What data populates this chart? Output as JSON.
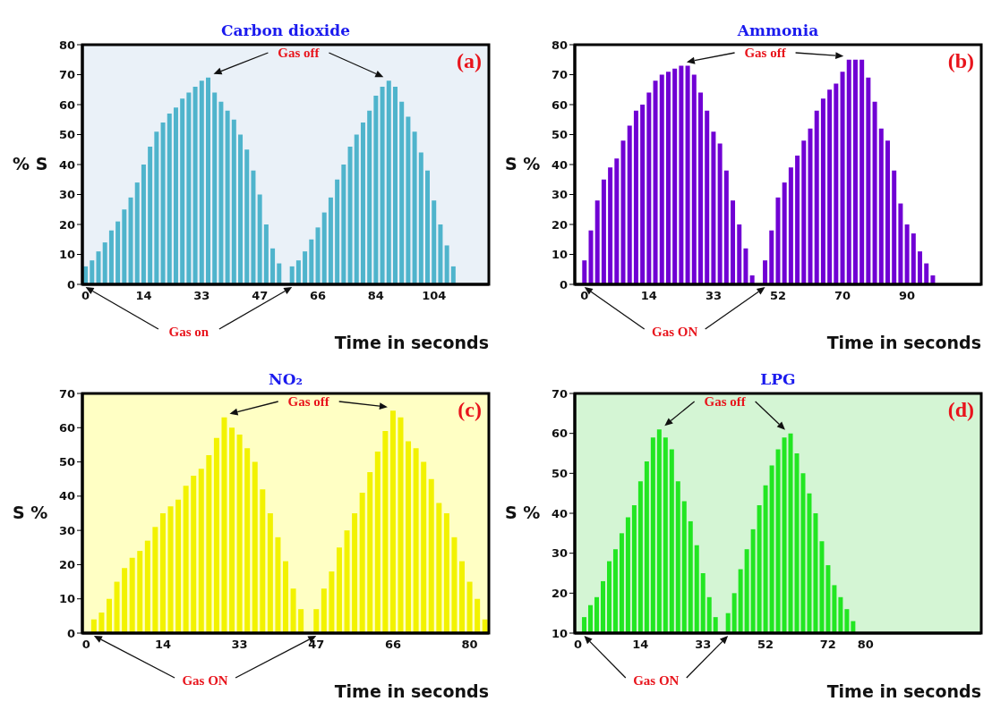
{
  "chart_data": [
    {
      "type": "bar",
      "title": "Carbon dioxide",
      "xlabel": "Time in seconds",
      "ylabel": "% S",
      "color": "#4fb4cc",
      "ylim": [
        0,
        80
      ],
      "yticks": [
        0,
        10,
        20,
        30,
        40,
        50,
        60,
        70,
        80
      ],
      "annotations": [
        "Gas off",
        "Gas on",
        "(a)"
      ],
      "categories": [
        "0",
        null,
        null,
        null,
        null,
        null,
        null,
        null,
        null,
        "14",
        null,
        null,
        null,
        null,
        null,
        null,
        null,
        null,
        "33",
        null,
        null,
        null,
        null,
        null,
        null,
        null,
        null,
        "47",
        null,
        null,
        null,
        null,
        null,
        null,
        null,
        null,
        "66",
        null,
        null,
        null,
        null,
        null,
        null,
        null,
        null,
        "84",
        null,
        null,
        null,
        null,
        null,
        null,
        null,
        null,
        "104",
        null,
        null,
        null,
        null,
        null,
        null,
        null,
        null
      ],
      "values": [
        6,
        8,
        11,
        14,
        18,
        21,
        25,
        29,
        34,
        40,
        46,
        51,
        54,
        57,
        59,
        62,
        64,
        66,
        68,
        69,
        64,
        61,
        58,
        55,
        50,
        45,
        38,
        30,
        20,
        12,
        7,
        null,
        6,
        8,
        11,
        15,
        19,
        24,
        29,
        35,
        40,
        46,
        50,
        54,
        58,
        63,
        66,
        68,
        66,
        61,
        56,
        51,
        44,
        38,
        28,
        20,
        13,
        6,
        null,
        null,
        null,
        null,
        null
      ]
    },
    {
      "type": "bar",
      "title": "Ammonia",
      "xlabel": "Time in seconds",
      "ylabel": "S %",
      "color": "#7000d4",
      "ylim": [
        0,
        80
      ],
      "yticks": [
        0,
        10,
        20,
        30,
        40,
        50,
        60,
        70,
        80
      ],
      "annotations": [
        "Gas off",
        "Gas ON",
        "(b)"
      ],
      "categories": [
        null,
        "0",
        null,
        null,
        null,
        null,
        null,
        null,
        null,
        null,
        null,
        "14",
        null,
        null,
        null,
        null,
        null,
        null,
        null,
        null,
        null,
        "33",
        null,
        null,
        null,
        null,
        null,
        null,
        null,
        null,
        null,
        "52",
        null,
        null,
        null,
        null,
        null,
        null,
        null,
        null,
        null,
        "70",
        null,
        null,
        null,
        null,
        null,
        null,
        null,
        null,
        null,
        "90",
        null,
        null,
        null,
        null,
        null,
        null,
        null,
        null,
        null,
        null,
        null
      ],
      "values": [
        null,
        8,
        18,
        28,
        35,
        39,
        42,
        48,
        53,
        58,
        60,
        64,
        68,
        70,
        71,
        72,
        73,
        73,
        70,
        64,
        58,
        51,
        47,
        38,
        28,
        20,
        12,
        3,
        null,
        8,
        18,
        29,
        34,
        39,
        43,
        48,
        52,
        58,
        62,
        65,
        67,
        71,
        75,
        75,
        75,
        69,
        61,
        52,
        48,
        38,
        27,
        20,
        17,
        11,
        7,
        3,
        null,
        null,
        null,
        null,
        null,
        null,
        null
      ]
    },
    {
      "type": "bar",
      "title": "NO₂",
      "xlabel": "Time in seconds",
      "ylabel": "S %",
      "color": "#f2f200",
      "ylim": [
        0,
        70
      ],
      "yticks": [
        0,
        10,
        20,
        30,
        40,
        50,
        60,
        70
      ],
      "annotations": [
        "Gas off",
        "Gas ON",
        "(c)"
      ],
      "categories": [
        "0",
        null,
        null,
        null,
        null,
        null,
        null,
        null,
        null,
        null,
        "14",
        null,
        null,
        null,
        null,
        null,
        null,
        null,
        null,
        null,
        "33",
        null,
        null,
        null,
        null,
        null,
        null,
        null,
        null,
        null,
        "47",
        null,
        null,
        null,
        null,
        null,
        null,
        null,
        null,
        null,
        "66",
        null,
        null,
        null,
        null,
        null,
        null,
        null,
        null,
        null,
        "80",
        null,
        null
      ],
      "values": [
        null,
        4,
        6,
        10,
        15,
        19,
        22,
        24,
        27,
        31,
        35,
        37,
        39,
        43,
        46,
        48,
        52,
        57,
        63,
        60,
        58,
        54,
        50,
        42,
        35,
        28,
        21,
        13,
        7,
        null,
        7,
        13,
        18,
        25,
        30,
        35,
        41,
        47,
        53,
        59,
        65,
        63,
        56,
        54,
        50,
        45,
        38,
        35,
        28,
        21,
        15,
        10,
        4
      ]
    },
    {
      "type": "bar",
      "title": "LPG",
      "xlabel": "Time in seconds",
      "ylabel": "S %",
      "color": "#22e622",
      "ylim": [
        10,
        70
      ],
      "yticks": [
        10,
        20,
        30,
        40,
        50,
        60,
        70
      ],
      "annotations": [
        "Gas off",
        "Gas ON",
        "(d)"
      ],
      "categories": [
        "0",
        null,
        null,
        null,
        null,
        null,
        null,
        null,
        null,
        null,
        "14",
        null,
        null,
        null,
        null,
        null,
        null,
        null,
        null,
        null,
        "33",
        null,
        null,
        null,
        null,
        null,
        null,
        null,
        null,
        null,
        "52",
        null,
        null,
        null,
        null,
        null,
        null,
        null,
        null,
        null,
        "72",
        null,
        null,
        null,
        null,
        null,
        "80",
        null,
        null,
        null,
        null,
        null,
        null,
        null,
        null,
        null,
        null,
        null,
        null,
        null,
        null,
        null,
        null,
        null,
        null
      ],
      "values": [
        null,
        14,
        17,
        19,
        23,
        28,
        31,
        35,
        39,
        42,
        48,
        53,
        59,
        61,
        59,
        56,
        48,
        43,
        38,
        32,
        25,
        19,
        14,
        null,
        15,
        20,
        26,
        31,
        36,
        42,
        47,
        52,
        56,
        59,
        60,
        55,
        50,
        45,
        40,
        33,
        27,
        22,
        19,
        16,
        13,
        null,
        null,
        null,
        null,
        null,
        null,
        null,
        null,
        null,
        null,
        null,
        null,
        null,
        null,
        null,
        null,
        null,
        null,
        null,
        null
      ]
    }
  ]
}
